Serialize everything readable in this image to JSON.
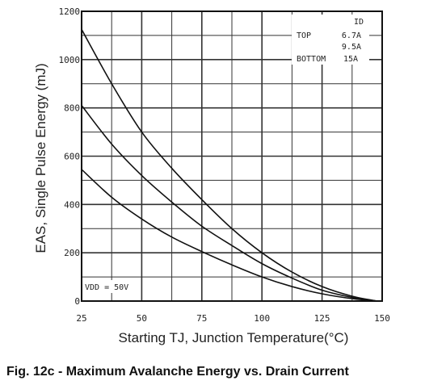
{
  "figure_caption": "Fig. 12c - Maximum Avalanche Energy vs. Drain Current",
  "chart_data": {
    "type": "line",
    "title": "",
    "xlabel": "Starting TJ, Junction Temperature(°C)",
    "ylabel": "EAS, Single Pulse Energy (mJ)",
    "xlim": [
      25,
      150
    ],
    "ylim": [
      0,
      1200
    ],
    "xticks": [
      25,
      50,
      75,
      100,
      125,
      150
    ],
    "yticks": [
      0,
      200,
      400,
      600,
      800,
      1000,
      1200
    ],
    "grid": true,
    "legend": {
      "placement": "top-right",
      "header": "ID",
      "rows": [
        {
          "position": "TOP",
          "value": "6.7A"
        },
        {
          "position": "",
          "value": "9.5A"
        },
        {
          "position": "BOTTOM",
          "value": "15A"
        }
      ]
    },
    "annotation": "VDD = 50V",
    "series": [
      {
        "x": [
          25,
          37.5,
          50,
          62.5,
          75,
          87.5,
          100,
          112.5,
          125,
          137.5,
          148
        ],
        "values": [
          1125,
          900,
          700,
          550,
          420,
          300,
          200,
          120,
          60,
          20,
          0
        ]
      },
      {
        "x": [
          25,
          37.5,
          50,
          62.5,
          75,
          87.5,
          100,
          112.5,
          125,
          137.5,
          148
        ],
        "values": [
          810,
          650,
          520,
          410,
          310,
          230,
          155,
          95,
          45,
          15,
          0
        ]
      },
      {
        "x": [
          25,
          37.5,
          50,
          62.5,
          75,
          87.5,
          100,
          112.5,
          125,
          137.5,
          148
        ],
        "values": [
          545,
          430,
          340,
          265,
          205,
          150,
          100,
          60,
          30,
          10,
          0
        ]
      }
    ]
  }
}
